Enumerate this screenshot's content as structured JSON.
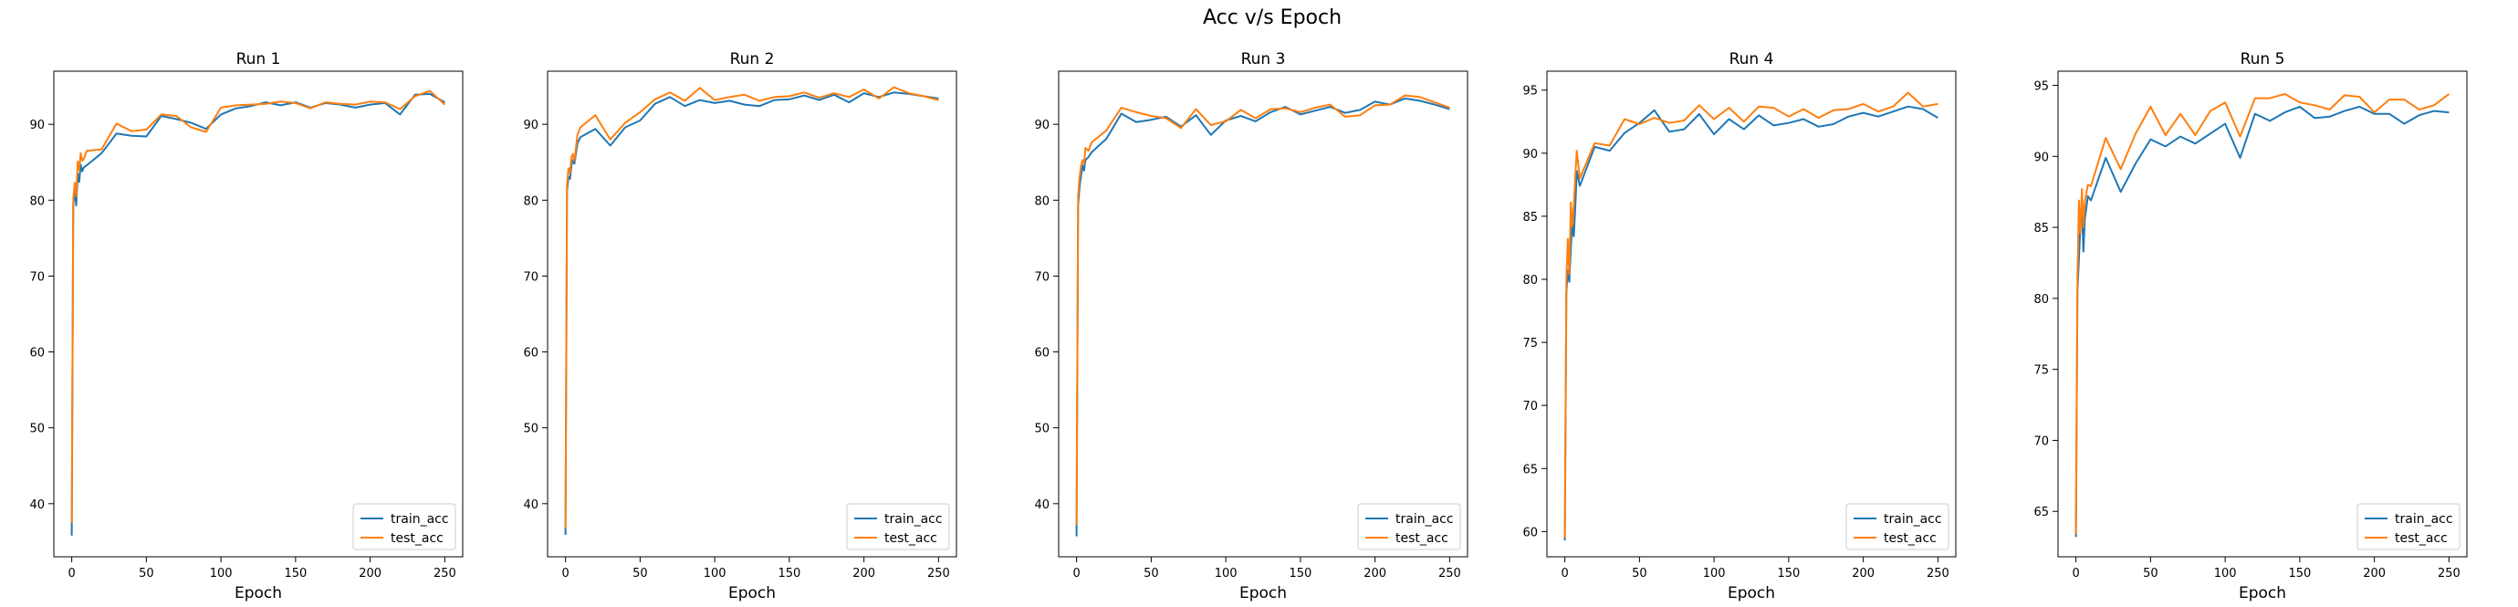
{
  "figure": {
    "suptitle": "Acc v/s Epoch"
  },
  "colors": {
    "train": "#1f77b4",
    "test": "#ff7f0e",
    "axis": "#000000",
    "legend_border": "#cccccc"
  },
  "chart_data": [
    {
      "type": "line",
      "title": "Run 1",
      "xlabel": "Epoch",
      "ylabel": "",
      "xlim": [
        -12,
        262
      ],
      "ylim": [
        33,
        97
      ],
      "xticks": [
        0,
        50,
        100,
        150,
        200,
        250
      ],
      "yticks": [
        40,
        50,
        60,
        70,
        80,
        90
      ],
      "legend": "lower right",
      "grid": false,
      "series": [
        {
          "name": "train_acc",
          "color": "#1f77b4",
          "x": [
            0,
            1,
            2,
            3,
            4,
            5,
            6,
            7,
            8,
            10,
            20,
            30,
            40,
            50,
            60,
            70,
            80,
            90,
            100,
            110,
            120,
            130,
            140,
            150,
            160,
            170,
            180,
            190,
            200,
            210,
            220,
            230,
            240,
            250
          ],
          "y": [
            35.8,
            79.5,
            81.2,
            79.3,
            83.5,
            82.4,
            84.7,
            83.8,
            84.3,
            84.6,
            86.2,
            88.8,
            88.5,
            88.4,
            91.1,
            90.7,
            90.2,
            89.4,
            91.3,
            92.1,
            92.4,
            92.9,
            92.5,
            92.9,
            92.2,
            92.8,
            92.6,
            92.2,
            92.6,
            92.8,
            91.3,
            93.9,
            94.0,
            92.9
          ]
        },
        {
          "name": "test_acc",
          "color": "#ff7f0e",
          "x": [
            0,
            1,
            2,
            3,
            4,
            5,
            6,
            7,
            8,
            10,
            20,
            30,
            40,
            50,
            60,
            70,
            80,
            90,
            100,
            110,
            120,
            130,
            140,
            150,
            160,
            170,
            180,
            190,
            200,
            210,
            220,
            230,
            240,
            250
          ],
          "y": [
            37.5,
            80.2,
            82.3,
            80.5,
            85.1,
            84.0,
            86.2,
            85.2,
            85.4,
            86.5,
            86.7,
            90.1,
            89.1,
            89.3,
            91.3,
            91.1,
            89.6,
            89.0,
            92.2,
            92.5,
            92.6,
            92.7,
            93.0,
            92.8,
            92.1,
            92.9,
            92.7,
            92.6,
            93.0,
            92.9,
            92.0,
            93.7,
            94.4,
            92.6
          ]
        }
      ]
    },
    {
      "type": "line",
      "title": "Run 2",
      "xlabel": "Epoch",
      "ylabel": "",
      "xlim": [
        -12,
        262
      ],
      "ylim": [
        33,
        97
      ],
      "xticks": [
        0,
        50,
        100,
        150,
        200,
        250
      ],
      "yticks": [
        40,
        50,
        60,
        70,
        80,
        90
      ],
      "legend": "lower right",
      "grid": false,
      "series": [
        {
          "name": "train_acc",
          "color": "#1f77b4",
          "x": [
            0,
            1,
            2,
            3,
            4,
            5,
            6,
            8,
            10,
            20,
            30,
            40,
            50,
            60,
            70,
            80,
            90,
            100,
            110,
            120,
            130,
            140,
            150,
            160,
            170,
            180,
            190,
            200,
            210,
            220,
            230,
            240,
            250
          ],
          "y": [
            35.9,
            81.2,
            83.1,
            82.8,
            84.6,
            85.3,
            84.8,
            87.5,
            88.3,
            89.4,
            87.2,
            89.6,
            90.5,
            92.7,
            93.6,
            92.4,
            93.2,
            92.8,
            93.1,
            92.6,
            92.4,
            93.2,
            93.3,
            93.8,
            93.2,
            93.9,
            92.9,
            94.1,
            93.6,
            94.2,
            94.0,
            93.7,
            93.4
          ]
        },
        {
          "name": "test_acc",
          "color": "#ff7f0e",
          "x": [
            0,
            1,
            2,
            3,
            4,
            5,
            6,
            8,
            10,
            20,
            30,
            40,
            50,
            60,
            70,
            80,
            90,
            100,
            110,
            120,
            130,
            140,
            150,
            160,
            170,
            180,
            190,
            200,
            210,
            220,
            230,
            240,
            250
          ],
          "y": [
            36.8,
            82.0,
            84.2,
            83.6,
            85.7,
            86.1,
            85.2,
            88.6,
            89.6,
            91.2,
            88.0,
            90.2,
            91.6,
            93.3,
            94.2,
            93.1,
            94.8,
            93.2,
            93.6,
            93.9,
            93.1,
            93.6,
            93.7,
            94.2,
            93.5,
            94.1,
            93.6,
            94.6,
            93.4,
            94.9,
            94.1,
            93.7,
            93.2
          ]
        }
      ]
    },
    {
      "type": "line",
      "title": "Run 3",
      "xlabel": "Epoch",
      "ylabel": "",
      "xlim": [
        -12,
        262
      ],
      "ylim": [
        33,
        97
      ],
      "xticks": [
        0,
        50,
        100,
        150,
        200,
        250
      ],
      "yticks": [
        40,
        50,
        60,
        70,
        80,
        90
      ],
      "legend": "lower right",
      "grid": false,
      "series": [
        {
          "name": "train_acc",
          "color": "#1f77b4",
          "x": [
            0,
            1,
            2,
            3,
            4,
            5,
            6,
            8,
            10,
            20,
            30,
            40,
            50,
            60,
            70,
            80,
            90,
            100,
            110,
            120,
            130,
            140,
            150,
            160,
            170,
            180,
            190,
            200,
            210,
            220,
            230,
            240,
            250
          ],
          "y": [
            35.7,
            79.3,
            81.8,
            83.2,
            84.6,
            83.9,
            85.3,
            85.7,
            86.3,
            88.1,
            91.4,
            90.3,
            90.6,
            91.0,
            89.7,
            91.2,
            88.6,
            90.5,
            91.1,
            90.4,
            91.6,
            92.3,
            91.3,
            91.8,
            92.3,
            91.5,
            91.9,
            93.0,
            92.6,
            93.4,
            93.1,
            92.6,
            92.0
          ]
        },
        {
          "name": "test_acc",
          "color": "#ff7f0e",
          "x": [
            0,
            1,
            2,
            3,
            4,
            5,
            6,
            8,
            10,
            20,
            30,
            40,
            50,
            60,
            70,
            80,
            90,
            100,
            110,
            120,
            130,
            140,
            150,
            160,
            170,
            180,
            190,
            200,
            210,
            220,
            230,
            240,
            250
          ],
          "y": [
            37.2,
            80.6,
            83.0,
            84.5,
            85.3,
            84.8,
            86.9,
            86.5,
            87.6,
            89.2,
            92.2,
            91.6,
            91.1,
            90.8,
            89.5,
            92.0,
            89.9,
            90.4,
            91.9,
            90.8,
            92.0,
            92.1,
            91.6,
            92.2,
            92.6,
            91.0,
            91.2,
            92.5,
            92.6,
            93.8,
            93.6,
            92.9,
            92.2
          ]
        }
      ]
    },
    {
      "type": "line",
      "title": "Run 4",
      "xlabel": "Epoch",
      "ylabel": "",
      "xlim": [
        -12,
        262
      ],
      "ylim": [
        58,
        96.5
      ],
      "xticks": [
        0,
        50,
        100,
        150,
        200,
        250
      ],
      "yticks": [
        60,
        65,
        70,
        75,
        80,
        85,
        90,
        95
      ],
      "legend": "lower right",
      "grid": false,
      "series": [
        {
          "name": "train_acc",
          "color": "#1f77b4",
          "x": [
            0,
            1,
            2,
            3,
            4,
            5,
            6,
            7,
            8,
            10,
            20,
            30,
            40,
            50,
            60,
            70,
            80,
            90,
            100,
            110,
            120,
            130,
            140,
            150,
            160,
            170,
            180,
            190,
            200,
            210,
            220,
            230,
            240,
            250
          ],
          "y": [
            59.3,
            79.0,
            80.7,
            79.8,
            82.5,
            84.5,
            83.4,
            85.8,
            88.6,
            87.4,
            90.5,
            90.2,
            91.6,
            92.4,
            93.4,
            91.7,
            91.9,
            93.1,
            91.5,
            92.7,
            91.9,
            93.0,
            92.2,
            92.4,
            92.7,
            92.1,
            92.3,
            92.9,
            93.2,
            92.9,
            93.3,
            93.7,
            93.5,
            92.8
          ]
        },
        {
          "name": "test_acc",
          "color": "#ff7f0e",
          "x": [
            0,
            1,
            2,
            3,
            4,
            5,
            6,
            7,
            8,
            10,
            20,
            30,
            40,
            50,
            60,
            70,
            80,
            90,
            100,
            110,
            120,
            130,
            140,
            150,
            160,
            170,
            180,
            190,
            200,
            210,
            220,
            230,
            240,
            250
          ],
          "y": [
            59.5,
            80.0,
            83.2,
            80.4,
            86.1,
            84.2,
            85.8,
            88.2,
            90.2,
            88.0,
            90.8,
            90.6,
            92.7,
            92.3,
            92.8,
            92.4,
            92.6,
            93.8,
            92.7,
            93.6,
            92.5,
            93.7,
            93.6,
            92.9,
            93.5,
            92.8,
            93.4,
            93.5,
            93.9,
            93.3,
            93.7,
            94.8,
            93.7,
            93.9
          ]
        }
      ]
    },
    {
      "type": "line",
      "title": "Run 5",
      "xlabel": "Epoch",
      "ylabel": "",
      "xlim": [
        -12,
        262
      ],
      "ylim": [
        61.8,
        96
      ],
      "xticks": [
        0,
        50,
        100,
        150,
        200,
        250
      ],
      "yticks": [
        65,
        70,
        75,
        80,
        85,
        90,
        95
      ],
      "legend": "lower right",
      "grid": false,
      "series": [
        {
          "name": "train_acc",
          "color": "#1f77b4",
          "x": [
            0,
            1,
            2,
            3,
            4,
            5,
            6,
            8,
            10,
            20,
            30,
            40,
            50,
            60,
            70,
            80,
            90,
            100,
            110,
            120,
            130,
            140,
            150,
            160,
            170,
            180,
            190,
            200,
            210,
            220,
            230,
            240,
            250
          ],
          "y": [
            63.2,
            80.5,
            82.8,
            85.2,
            86.5,
            83.3,
            85.6,
            87.2,
            86.9,
            89.9,
            87.5,
            89.5,
            91.2,
            90.7,
            91.4,
            90.9,
            91.6,
            92.3,
            89.9,
            93.0,
            92.5,
            93.1,
            93.5,
            92.7,
            92.8,
            93.2,
            93.5,
            93.0,
            93.0,
            92.3,
            92.9,
            93.2,
            93.1
          ]
        },
        {
          "name": "test_acc",
          "color": "#ff7f0e",
          "x": [
            0,
            1,
            2,
            3,
            4,
            5,
            6,
            8,
            10,
            20,
            30,
            40,
            50,
            60,
            70,
            80,
            90,
            100,
            110,
            120,
            130,
            140,
            150,
            160,
            170,
            180,
            190,
            200,
            210,
            220,
            230,
            240,
            250
          ],
          "y": [
            63.4,
            81.5,
            86.9,
            84.6,
            87.7,
            85.0,
            86.8,
            88.0,
            87.9,
            91.3,
            89.1,
            91.6,
            93.5,
            91.5,
            93.0,
            91.5,
            93.2,
            93.8,
            91.4,
            94.1,
            94.1,
            94.4,
            93.8,
            93.6,
            93.3,
            94.3,
            94.2,
            93.1,
            94.0,
            94.0,
            93.3,
            93.6,
            94.4
          ]
        }
      ]
    }
  ]
}
